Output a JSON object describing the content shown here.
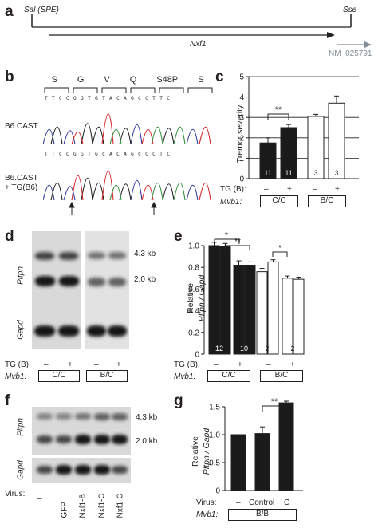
{
  "panel_a": {
    "label": "a",
    "left_site": "Sal (SPE)",
    "right_site": "Sse",
    "gene": "Nxf1",
    "refseq": "NM_025791"
  },
  "panel_b": {
    "label": "b",
    "codons": [
      "S",
      "G",
      "V",
      "Q",
      "S48P",
      "S"
    ],
    "seq_top": "TTCCGGTGTACAGCCTTC",
    "seq_bottom": "TTCCGGTGCACAGCCCTC",
    "row1": "B6.CAST",
    "row2_line1": "B6.CAST",
    "row2_line2": "+ TG(B6)"
  },
  "panel_c": {
    "label": "c",
    "ylabel": "Tremor severity",
    "sig": "**",
    "row_tg": "TG (B):",
    "row_mvb": "Mvb1:",
    "tg_vals": [
      "–",
      "+",
      "–",
      "+"
    ],
    "groups": [
      "C/C",
      "B/C"
    ]
  },
  "panel_d": {
    "label": "d",
    "size1": "4.3 kb",
    "size2": "2.0 kb",
    "lane_label1": "Pltpn",
    "lane_label2": "Gapd",
    "row_tg": "TG (B):",
    "row_mvb": "Mvb1:",
    "tg_vals": [
      "–",
      "+",
      "–",
      "+"
    ],
    "groups": [
      "C/C",
      "B/C"
    ]
  },
  "panel_e": {
    "label": "e",
    "ylabel1": "Relative",
    "ylabel2": "Pltpn / Gapd",
    "sig_pairs": [
      "*",
      "**",
      "*"
    ],
    "row_tg": "TG (B):",
    "row_mvb": "Mvb1:",
    "tg_vals": [
      "–",
      "+",
      "–",
      "+",
      "–",
      "+",
      "–",
      "+"
    ],
    "groups": [
      "C/C",
      "B/C"
    ]
  },
  "panel_f": {
    "label": "f",
    "size1": "4.3 kb",
    "size2": "2.0 kb",
    "lane_label1": "Pltpn",
    "lane_label2": "Gapd",
    "row_virus": "Virus:",
    "lanes": [
      "–",
      "GFP",
      "Nxf1-B",
      "Nxf1-C",
      "Nxf1-C"
    ]
  },
  "panel_g": {
    "label": "g",
    "ylabel1": "Relative",
    "ylabel2": "Pltpn / Gapd",
    "sig": "**",
    "row_virus": "Virus:",
    "row_mvb": "Mvb1:",
    "virus_vals": [
      "–",
      "Control",
      "C"
    ],
    "group": "B/B"
  },
  "chart_data": [
    {
      "panel": "c",
      "type": "bar",
      "ylabel": "Tremor severity",
      "ylim": [
        0,
        5
      ],
      "yticks": [
        0,
        1,
        2,
        3,
        4,
        5
      ],
      "categories": [
        "C/C TG–",
        "C/C TG+",
        "B/C TG–",
        "B/C TG+"
      ],
      "values": [
        1.75,
        2.5,
        3.05,
        3.7
      ],
      "errors": [
        0.25,
        0.15,
        0.1,
        0.35
      ],
      "n": [
        "11",
        "11",
        "3",
        "3"
      ],
      "fill": [
        "#1a1a1a",
        "#1a1a1a",
        "#ffffff",
        "#ffffff"
      ]
    },
    {
      "panel": "e",
      "type": "bar",
      "ylabel": "Relative Pltpn / Gapd",
      "ylim": [
        0,
        1.0
      ],
      "yticks": [
        0,
        0.2,
        0.4,
        0.6,
        0.8,
        1.0
      ],
      "values": [
        1.0,
        0.99,
        0.82,
        0.82,
        0.76,
        0.85,
        0.7,
        0.69
      ],
      "errors": [
        0.03,
        0.03,
        0.04,
        0.03,
        0.03,
        0.02,
        0.02,
        0.02
      ],
      "n": [
        "12",
        "10",
        "2",
        "2"
      ],
      "fill": [
        "#1a1a1a",
        "#1a1a1a",
        "#1a1a1a",
        "#1a1a1a",
        "#ffffff",
        "#ffffff",
        "#ffffff",
        "#ffffff"
      ]
    },
    {
      "panel": "g",
      "type": "bar",
      "ylabel": "Relative Pltpn / Gapd",
      "ylim": [
        0,
        1.5
      ],
      "yticks": [
        0,
        0.5,
        1.0,
        1.5
      ],
      "categories": [
        "–",
        "Control",
        "C"
      ],
      "values": [
        1.0,
        1.02,
        1.57
      ],
      "errors": [
        0,
        0.12,
        0.03
      ],
      "fill": [
        "#1a1a1a",
        "#1a1a1a",
        "#1a1a1a"
      ]
    }
  ]
}
